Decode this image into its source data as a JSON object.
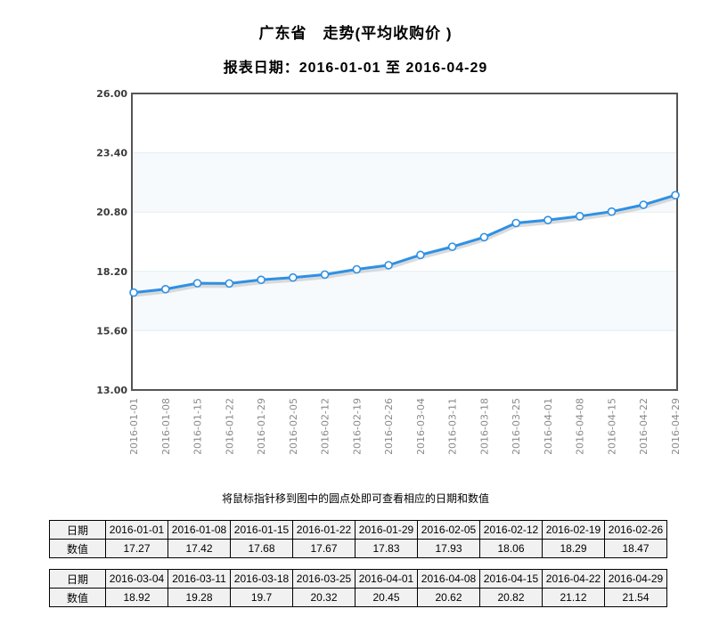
{
  "page": {
    "title": "广东省　走势(平均收购价 )",
    "subtitle": "报表日期：2016-01-01 至 2016-04-29",
    "note": "将鼠标指针移到图中的圆点处即可查看相应的日期和数值"
  },
  "chart_data": {
    "type": "line",
    "title": "广东省 走势(平均收购价)",
    "xlabel": "",
    "ylabel": "",
    "x": [
      "2016-01-01",
      "2016-01-08",
      "2016-01-15",
      "2016-01-22",
      "2016-01-29",
      "2016-02-05",
      "2016-02-12",
      "2016-02-19",
      "2016-02-26",
      "2016-03-04",
      "2016-03-11",
      "2016-03-18",
      "2016-03-25",
      "2016-04-01",
      "2016-04-08",
      "2016-04-15",
      "2016-04-22",
      "2016-04-29"
    ],
    "values": [
      17.27,
      17.42,
      17.68,
      17.67,
      17.83,
      17.93,
      18.06,
      18.29,
      18.47,
      18.92,
      19.28,
      19.7,
      20.32,
      20.45,
      20.62,
      20.82,
      21.12,
      21.54
    ],
    "ylim": [
      13.0,
      26.0
    ],
    "yticks": [
      "13.00",
      "15.60",
      "18.20",
      "20.80",
      "23.40",
      "26.00"
    ],
    "grid": "horizontal",
    "legend": "none",
    "marker": "circle-open",
    "colors": {
      "line": "#2e90e5",
      "marker_fill": "#ffffff",
      "shadow": "#c3c3c3",
      "band": "#f7fafc",
      "gridline": "#e3edf4",
      "frame": "#555555",
      "ytick_text": "#3a3a3a",
      "xtick_text": "#8a8a8a"
    }
  },
  "tables": {
    "date_label": "日期",
    "value_label": "数值",
    "groups": [
      {
        "dates": [
          "2016-01-01",
          "2016-01-08",
          "2016-01-15",
          "2016-01-22",
          "2016-01-29",
          "2016-02-05",
          "2016-02-12",
          "2016-02-19",
          "2016-02-26"
        ],
        "values": [
          "17.27",
          "17.42",
          "17.68",
          "17.67",
          "17.83",
          "17.93",
          "18.06",
          "18.29",
          "18.47"
        ]
      },
      {
        "dates": [
          "2016-03-04",
          "2016-03-11",
          "2016-03-18",
          "2016-03-25",
          "2016-04-01",
          "2016-04-08",
          "2016-04-15",
          "2016-04-22",
          "2016-04-29"
        ],
        "values": [
          "18.92",
          "19.28",
          "19.7",
          "20.32",
          "20.45",
          "20.62",
          "20.82",
          "21.12",
          "21.54"
        ]
      }
    ]
  }
}
